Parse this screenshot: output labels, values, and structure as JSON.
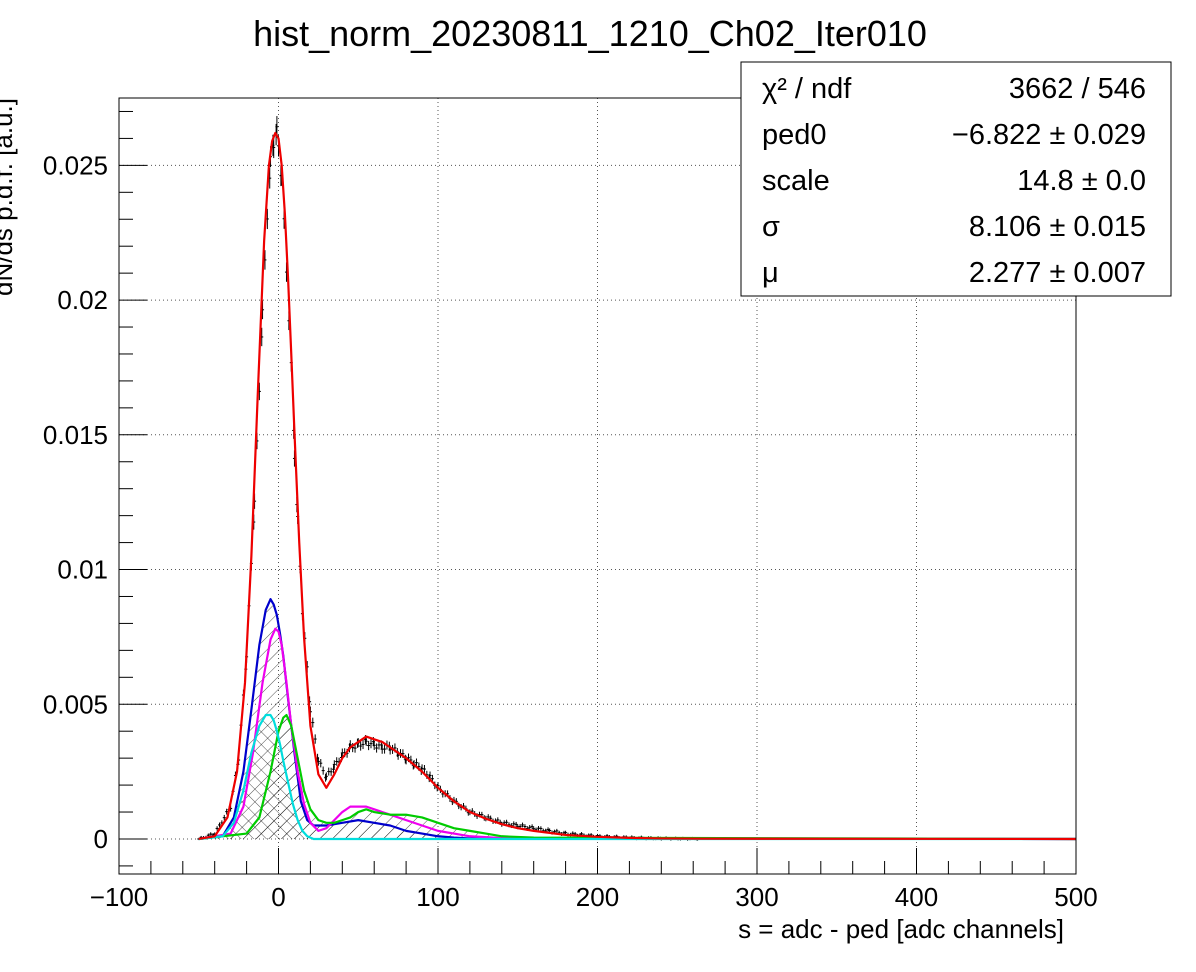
{
  "chart_data": {
    "type": "line",
    "title": "hist_norm_20230811_1210_Ch02_Iter010",
    "xlabel": "s = adc - ped [adc channels]",
    "ylabel": "dN/ds p.d.f. [a.u.]",
    "xlim": [
      -100,
      500
    ],
    "ylim": [
      -0.0013,
      0.0275
    ],
    "grid": true,
    "x_ticks": [
      -100,
      0,
      100,
      200,
      300,
      400,
      500
    ],
    "x_tick_labels": [
      "−100",
      "0",
      "100",
      "200",
      "300",
      "400",
      "500"
    ],
    "y_ticks": [
      0,
      0.005,
      0.01,
      0.015,
      0.02,
      0.025
    ],
    "y_tick_labels": [
      "0",
      "0.005",
      "0.01",
      "0.015",
      "0.02",
      "0.025"
    ],
    "stats": {
      "rows": [
        {
          "label": "χ² / ndf",
          "value": "3662 / 546"
        },
        {
          "label": "ped0",
          "value": "−6.822 ± 0.029"
        },
        {
          "label": "scale",
          "value": "14.8 ± 0.0"
        },
        {
          "label": "σ",
          "value": "8.106 ± 0.015"
        },
        {
          "label": "μ",
          "value": "2.277 ± 0.007"
        }
      ]
    },
    "data_points": {
      "color": "#000000",
      "x": [
        -50,
        -40,
        -30,
        -25,
        -20,
        -15,
        -10,
        -7,
        -5,
        -3,
        -1,
        0,
        2,
        5,
        8,
        10,
        12,
        15,
        20,
        25,
        30,
        35,
        40,
        45,
        50,
        55,
        60,
        65,
        70,
        75,
        80,
        85,
        90,
        95,
        100,
        110,
        120,
        130,
        140,
        150,
        160,
        170,
        180,
        190,
        200,
        220,
        240,
        265
      ],
      "y": [
        0,
        0.0002,
        0.0012,
        0.003,
        0.0068,
        0.0125,
        0.0195,
        0.0232,
        0.0251,
        0.0259,
        0.0262,
        0.0258,
        0.0245,
        0.0212,
        0.0175,
        0.0143,
        0.0118,
        0.0085,
        0.0048,
        0.0029,
        0.0023,
        0.0027,
        0.0031,
        0.0034,
        0.0035,
        0.0036,
        0.0035,
        0.0034,
        0.0034,
        0.0032,
        0.003,
        0.0028,
        0.0026,
        0.0023,
        0.0019,
        0.0014,
        0.001,
        0.0008,
        0.0006,
        0.0005,
        0.0004,
        0.0003,
        0.0002,
        0.00015,
        0.0001,
        5e-05,
        2e-05,
        0
      ]
    },
    "series": [
      {
        "color": "#0000cc",
        "hatched": true,
        "x": [
          -50,
          -35,
          -28,
          -22,
          -17,
          -12,
          -8,
          -5,
          -3,
          -1,
          1,
          3,
          6,
          10,
          14,
          18,
          22,
          26,
          30,
          40,
          50,
          60,
          70,
          80,
          90,
          100,
          110,
          120,
          500
        ],
        "y": [
          0,
          0.0001,
          0.0008,
          0.0025,
          0.0048,
          0.0072,
          0.0085,
          0.0089,
          0.0087,
          0.0083,
          0.0076,
          0.0068,
          0.0052,
          0.0032,
          0.0014,
          0.0007,
          0.0005,
          0.0005,
          0.0005,
          0.0006,
          0.0007,
          0.0006,
          0.0005,
          0.0003,
          0.0002,
          0.0001,
          5e-05,
          2e-05,
          0
        ]
      },
      {
        "color": "#ee00ee",
        "hatched": false,
        "x": [
          -50,
          -30,
          -22,
          -16,
          -10,
          -5,
          -2,
          0,
          2,
          5,
          8,
          12,
          16,
          20,
          25,
          30,
          35,
          40,
          45,
          50,
          55,
          60,
          70,
          80,
          90,
          100,
          110,
          120,
          140,
          500
        ],
        "y": [
          0,
          0.0002,
          0.0012,
          0.0032,
          0.0058,
          0.0074,
          0.0078,
          0.0077,
          0.0072,
          0.0058,
          0.0042,
          0.0025,
          0.0013,
          0.0006,
          0.0003,
          0.0004,
          0.0007,
          0.001,
          0.0012,
          0.0012,
          0.0012,
          0.0011,
          0.0009,
          0.0007,
          0.0005,
          0.0003,
          0.0002,
          0.0001,
          3e-05,
          0
        ]
      },
      {
        "color": "#00cc00",
        "hatched": true,
        "x": [
          -50,
          -20,
          -12,
          -5,
          0,
          3,
          5,
          8,
          12,
          16,
          20,
          25,
          30,
          35,
          40,
          45,
          50,
          55,
          60,
          70,
          80,
          90,
          100,
          110,
          120,
          130,
          140,
          160,
          500
        ],
        "y": [
          0,
          0.0002,
          0.0008,
          0.0025,
          0.004,
          0.0045,
          0.0046,
          0.0042,
          0.003,
          0.0018,
          0.0011,
          0.0007,
          0.0006,
          0.0006,
          0.0007,
          0.0008,
          0.001,
          0.0011,
          0.001,
          0.0009,
          0.0009,
          0.0008,
          0.0006,
          0.0004,
          0.0003,
          0.0002,
          0.0001,
          5e-05,
          0
        ]
      },
      {
        "color": "#00dddd",
        "hatched": true,
        "x": [
          -50,
          -35,
          -28,
          -22,
          -17,
          -12,
          -8,
          -5,
          -3,
          -1,
          1,
          3,
          6,
          9,
          12,
          15,
          18,
          22,
          500
        ],
        "y": [
          0,
          0.0001,
          0.0006,
          0.0018,
          0.0032,
          0.0042,
          0.0046,
          0.0046,
          0.0044,
          0.004,
          0.0035,
          0.0029,
          0.0021,
          0.0013,
          0.0007,
          0.0003,
          0.0001,
          0,
          0
        ]
      },
      {
        "color": "#ee0000",
        "hatched": false,
        "x": [
          -50,
          -40,
          -32,
          -26,
          -21,
          -17,
          -13,
          -9,
          -6,
          -4,
          -2,
          0,
          2,
          4,
          6,
          8,
          10,
          13,
          16,
          20,
          25,
          30,
          35,
          40,
          45,
          50,
          55,
          60,
          65,
          70,
          75,
          80,
          90,
          100,
          110,
          120,
          130,
          140,
          150,
          160,
          180,
          200,
          220,
          240,
          265,
          500
        ],
        "y": [
          0,
          0.0001,
          0.0008,
          0.0025,
          0.0058,
          0.0105,
          0.0165,
          0.0222,
          0.025,
          0.0259,
          0.0262,
          0.026,
          0.025,
          0.0232,
          0.0208,
          0.018,
          0.0151,
          0.011,
          0.0075,
          0.0042,
          0.0024,
          0.0019,
          0.0024,
          0.003,
          0.0034,
          0.0036,
          0.0038,
          0.0037,
          0.0036,
          0.0034,
          0.0032,
          0.003,
          0.0025,
          0.0019,
          0.0014,
          0.001,
          0.00075,
          0.00055,
          0.0004,
          0.0003,
          0.00015,
          8e-05,
          4e-05,
          2e-05,
          1e-05,
          0
        ]
      }
    ]
  }
}
